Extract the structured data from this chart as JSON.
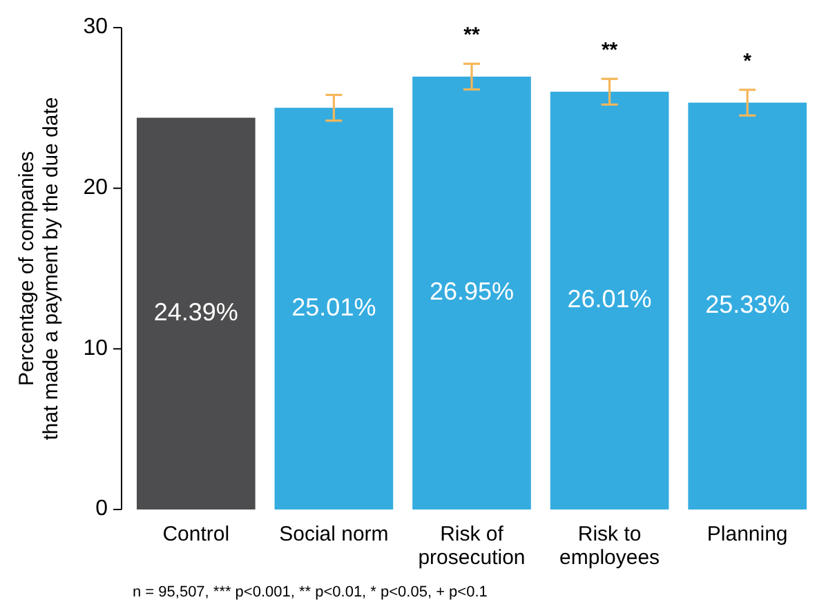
{
  "chart_data": {
    "type": "bar",
    "ylabel": "Percentage of companies\nthat made a payment by the due date",
    "categories": [
      "Control",
      "Social norm",
      "Risk of\nprosecution",
      "Risk to\nemployees",
      "Planning"
    ],
    "values": [
      24.39,
      25.01,
      26.95,
      26.01,
      25.33
    ],
    "colors": [
      "#4d4d4f",
      "#35ace0",
      "#35ace0",
      "#35ace0",
      "#35ace0"
    ],
    "errors": [
      null,
      0.8,
      0.8,
      0.8,
      0.8
    ],
    "value_labels": [
      "24.39%",
      "25.01%",
      "26.95%",
      "26.01%",
      "25.33%"
    ],
    "ylim": [
      0,
      30
    ],
    "yticks": [
      0,
      10,
      20,
      30
    ],
    "grid": false,
    "annotations": [
      "**",
      "**",
      "*",
      "n = 95,507,  *** p<0.001, ** p<0.01, * p<0.05, +  p<0.1"
    ]
  }
}
